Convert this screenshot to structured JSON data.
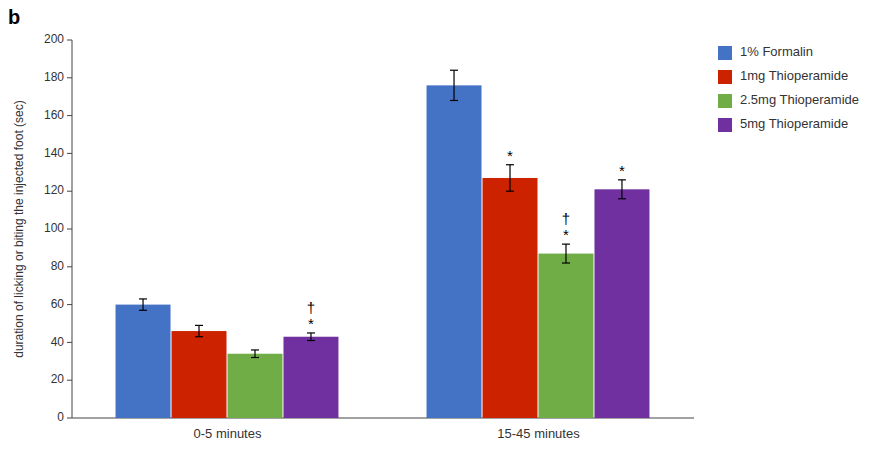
{
  "chart_data": {
    "type": "bar",
    "title": "b",
    "categories": [
      "0-5 minutes",
      "15-45 minutes"
    ],
    "series": [
      {
        "name": "1% Formalin",
        "color": "#4472C4",
        "values": [
          60,
          176
        ],
        "errors": [
          3,
          8
        ]
      },
      {
        "name": "1mg Thioperamide",
        "color": "#CC2200",
        "values": [
          46,
          127
        ],
        "errors": [
          3,
          7
        ]
      },
      {
        "name": "2.5mg Thioperamide",
        "color": "#70AD47",
        "values": [
          34,
          87
        ],
        "errors": [
          2,
          5
        ]
      },
      {
        "name": "5mg Thioperamide",
        "color": "#7030A0",
        "values": [
          43,
          121
        ],
        "errors": [
          2,
          5
        ]
      }
    ],
    "y_label": "duration of licking or biting the injected foot (sec)",
    "ylim": [
      0,
      200
    ],
    "yticks": [
      0,
      20,
      40,
      60,
      80,
      100,
      120,
      140,
      160,
      180,
      200
    ],
    "grid": false,
    "legend": "right",
    "annotations": [
      {
        "text": "*",
        "series": 3,
        "category": 0
      },
      {
        "text": "†",
        "series": 3,
        "category": 0
      },
      {
        "text": "*",
        "series": 1,
        "category": 1
      },
      {
        "text": "*",
        "series": 2,
        "category": 1
      },
      {
        "text": "†",
        "series": 2,
        "category": 1
      },
      {
        "text": "*",
        "series": 3,
        "category": 1
      }
    ]
  }
}
